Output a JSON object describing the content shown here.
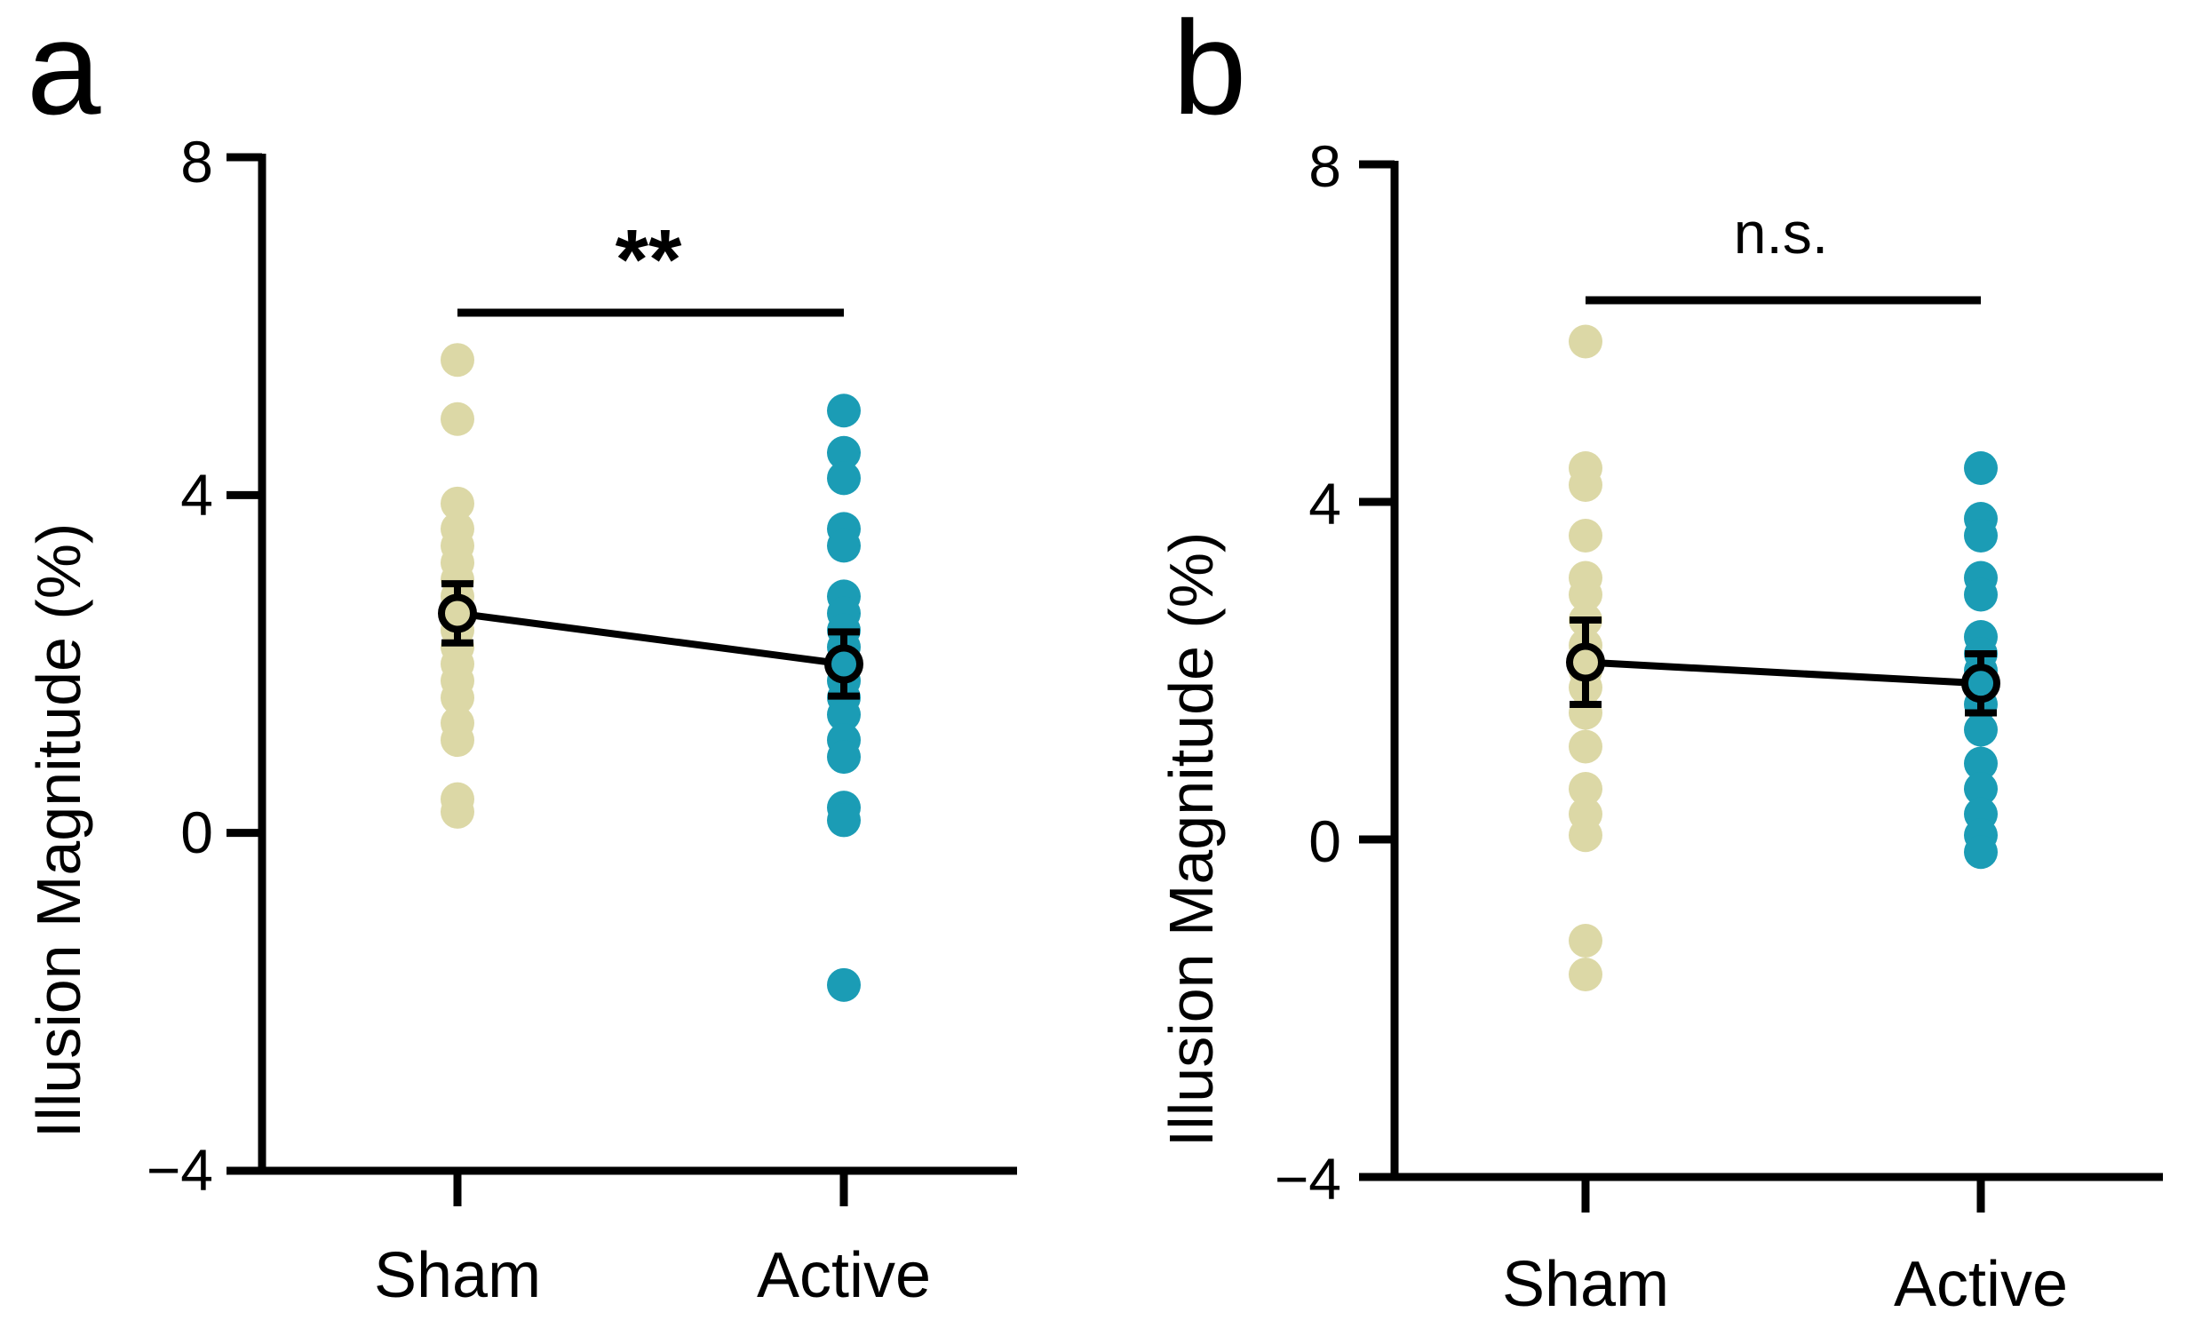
{
  "chart_data": [
    {
      "type": "scatter",
      "panel_label": "a",
      "ylabel": "Illusion Magnitude (%)",
      "ylim": [
        -4,
        8
      ],
      "yticks": [
        "8",
        "4",
        "0",
        "−4"
      ],
      "ytick_values": [
        8,
        4,
        0,
        -4
      ],
      "categories": [
        "Sham",
        "Active"
      ],
      "significance": "**",
      "colors": {
        "Sham": "#dcd8a6",
        "Active": "#1b9cb5"
      },
      "points": {
        "Sham": [
          5.6,
          4.9,
          3.9,
          3.6,
          3.4,
          3.2,
          3.0,
          2.8,
          2.6,
          2.4,
          2.2,
          2.0,
          1.8,
          1.6,
          1.3,
          1.1,
          0.4,
          0.25
        ],
        "Active": [
          5.0,
          4.5,
          4.2,
          3.6,
          3.4,
          2.8,
          2.6,
          2.4,
          2.2,
          2.0,
          1.8,
          1.6,
          1.4,
          1.1,
          0.9,
          0.3,
          0.15,
          -1.8
        ]
      },
      "mean": {
        "Sham": 2.6,
        "Active": 2.0
      },
      "sem": {
        "Sham": 0.35,
        "Active": 0.38
      }
    },
    {
      "type": "scatter",
      "panel_label": "b",
      "ylabel": "Illusion Magnitude (%)",
      "ylim": [
        -4,
        8
      ],
      "yticks": [
        "8",
        "4",
        "0",
        "−4"
      ],
      "ytick_values": [
        8,
        4,
        0,
        -4
      ],
      "categories": [
        "Sham",
        "Active"
      ],
      "significance": "n.s.",
      "colors": {
        "Sham": "#dcd8a6",
        "Active": "#1b9cb5"
      },
      "points": {
        "Sham": [
          5.9,
          4.4,
          4.2,
          3.6,
          3.1,
          2.9,
          2.6,
          2.3,
          2.0,
          1.8,
          1.5,
          1.1,
          0.6,
          0.3,
          0.05,
          -1.2,
          -1.6
        ],
        "Active": [
          4.4,
          3.8,
          3.6,
          3.1,
          2.9,
          2.4,
          2.2,
          2.0,
          1.8,
          1.6,
          1.3,
          0.9,
          0.6,
          0.3,
          0.05,
          -0.15
        ]
      },
      "mean": {
        "Sham": 2.1,
        "Active": 1.85
      },
      "sem": {
        "Sham": 0.5,
        "Active": 0.35
      }
    }
  ]
}
